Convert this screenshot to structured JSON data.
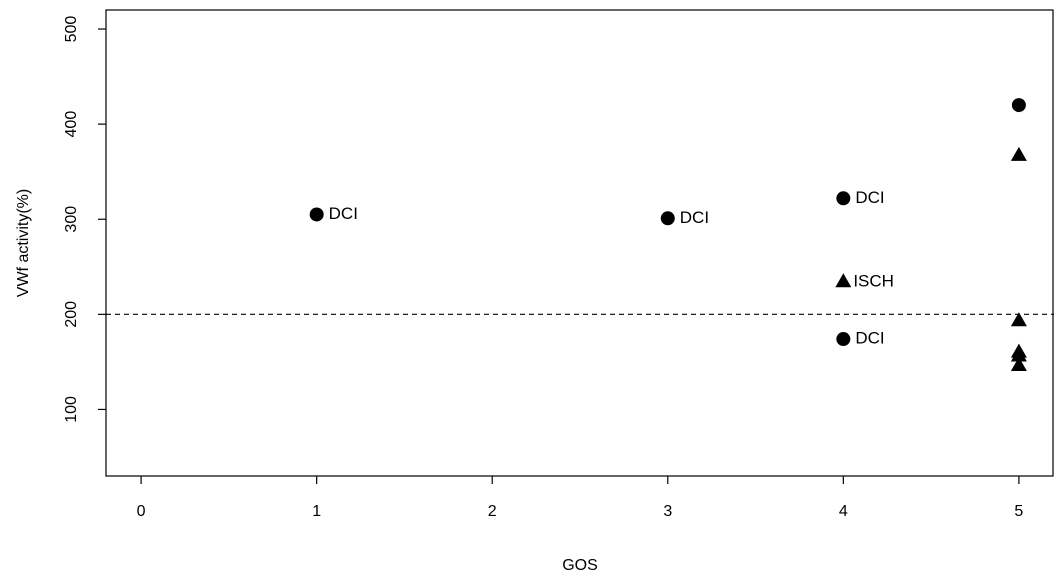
{
  "chart_data": {
    "type": "scatter",
    "title": "",
    "xlabel": "GOS",
    "ylabel": "VWf activity(%)",
    "xlim": [
      -0.2,
      5.2
    ],
    "ylim": [
      30,
      520
    ],
    "xticks": [
      0,
      1,
      2,
      3,
      4,
      5
    ],
    "yticks": [
      100,
      200,
      300,
      400,
      500
    ],
    "reference_line": {
      "y": 200,
      "style": "dashed"
    },
    "grid": false,
    "series": [
      {
        "marker": "circle",
        "points": [
          {
            "x": 1,
            "y": 305,
            "label": "DCI"
          },
          {
            "x": 3,
            "y": 301,
            "label": "DCI"
          },
          {
            "x": 4,
            "y": 322,
            "label": "DCI"
          },
          {
            "x": 4,
            "y": 174,
            "label": "DCI"
          },
          {
            "x": 5,
            "y": 420,
            "label": ""
          }
        ]
      },
      {
        "marker": "triangle",
        "points": [
          {
            "x": 4,
            "y": 234,
            "label": "ISCH"
          },
          {
            "x": 5,
            "y": 367,
            "label": ""
          },
          {
            "x": 5,
            "y": 193,
            "label": ""
          },
          {
            "x": 5,
            "y": 160,
            "label": ""
          },
          {
            "x": 5,
            "y": 156,
            "label": ""
          },
          {
            "x": 5,
            "y": 146,
            "label": ""
          }
        ]
      }
    ]
  }
}
